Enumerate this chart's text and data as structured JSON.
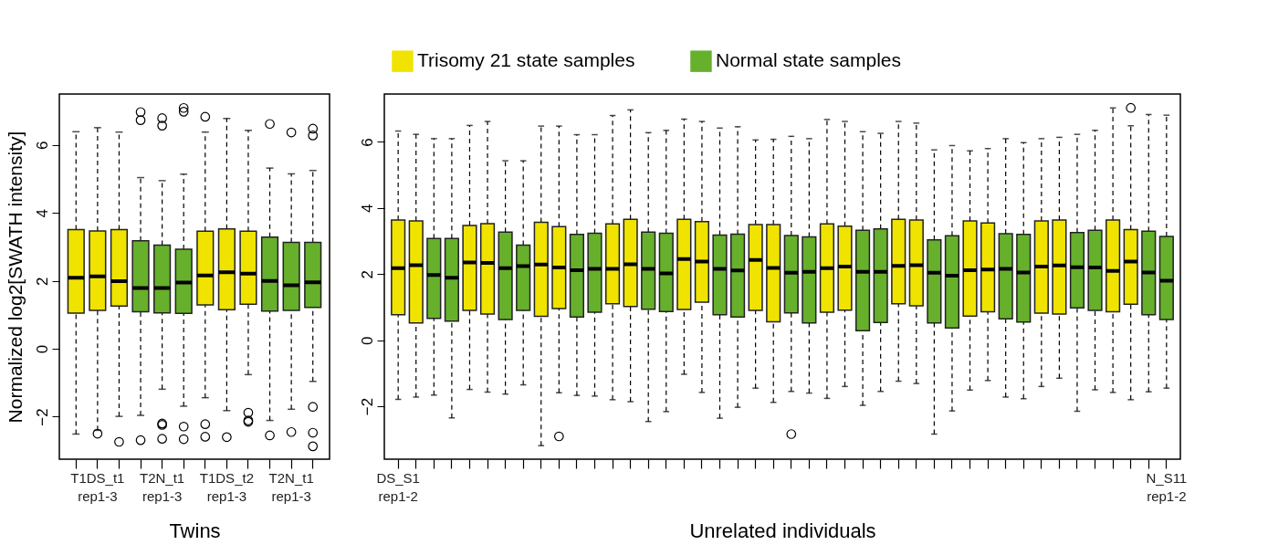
{
  "chart_data": [
    {
      "type": "box",
      "xlabel": "Twins",
      "ylabel": "Normalized log2[SWATH intensity]",
      "legend": "top",
      "categories": [
        null,
        "T1DS_t1\nrep1-3",
        null,
        null,
        "T2N_t1\nrep1-3",
        null,
        null,
        "T1DS_t2\nrep1-3",
        null,
        null,
        "T2N_t1\nrep1-3",
        null
      ],
      "ylim": [
        -3.25,
        7.5
      ],
      "yticks": [
        -2,
        0,
        2,
        4,
        6
      ],
      "series": [
        {
          "name": "Trisomy 21 state samples",
          "color": "#f0e300",
          "boxes": [
            {
              "low": -2.51,
              "q1": 1.05,
              "median": 2.09,
              "q3": 3.51,
              "high": 6.39
            },
            {
              "low": -2.4,
              "q1": 1.13,
              "median": 2.13,
              "q3": 3.47,
              "high": 6.51,
              "outliers": [
                -2.5
              ]
            },
            {
              "low": -1.99,
              "q1": 1.26,
              "median": 1.99,
              "q3": 3.51,
              "high": 6.38,
              "outliers": [
                -2.74
              ]
            },
            null,
            null,
            null,
            {
              "low": -1.44,
              "q1": 1.29,
              "median": 2.16,
              "q3": 3.46,
              "high": 6.38,
              "outliers": [
                6.83,
                -2.22,
                -2.59
              ]
            },
            {
              "low": -1.82,
              "q1": 1.15,
              "median": 2.25,
              "q3": 3.53,
              "high": 6.78,
              "outliers": [
                -2.6
              ]
            },
            {
              "low": -0.76,
              "q1": 1.31,
              "median": 2.21,
              "q3": 3.46,
              "high": 6.43,
              "outliers": [
                -1.88,
                -2.11,
                -2.15
              ]
            },
            null,
            null,
            null
          ]
        },
        {
          "name": "Normal state samples",
          "color": "#66b02c",
          "boxes": [
            null,
            null,
            null,
            {
              "low": -1.96,
              "q1": 1.09,
              "median": 1.79,
              "q3": 3.18,
              "high": 5.04,
              "outliers": [
                6.97,
                6.73,
                -2.69
              ]
            },
            {
              "low": -1.19,
              "q1": 1.06,
              "median": 1.79,
              "q3": 3.05,
              "high": 4.95,
              "outliers": [
                6.79,
                6.57,
                -2.2,
                -2.24,
                -2.65
              ]
            },
            {
              "low": -1.69,
              "q1": 1.04,
              "median": 1.95,
              "q3": 2.93,
              "high": 5.14,
              "outliers": [
                7.09,
                6.98,
                -2.29,
                -2.66
              ]
            },
            null,
            null,
            null,
            {
              "low": -2.11,
              "q1": 1.11,
              "median": 2.0,
              "q3": 3.29,
              "high": 5.32,
              "outliers": [
                6.62,
                -2.55
              ]
            },
            {
              "low": -1.78,
              "q1": 1.13,
              "median": 1.87,
              "q3": 3.13,
              "high": 5.15,
              "outliers": [
                6.37,
                -2.45
              ]
            },
            {
              "low": -0.96,
              "q1": 1.22,
              "median": 1.96,
              "q3": 3.13,
              "high": 5.25,
              "outliers": [
                6.48,
                6.28,
                -1.71,
                -2.47,
                -2.87
              ]
            }
          ]
        }
      ]
    },
    {
      "type": "box",
      "xlabel": "Unrelated individuals",
      "legend": "top",
      "categories": [
        "DS_S1\nrep1-2",
        null,
        null,
        null,
        null,
        null,
        null,
        null,
        null,
        null,
        null,
        null,
        null,
        null,
        null,
        null,
        null,
        null,
        null,
        null,
        null,
        null,
        null,
        null,
        null,
        null,
        null,
        null,
        null,
        null,
        null,
        null,
        null,
        null,
        null,
        null,
        null,
        null,
        null,
        null,
        null,
        null,
        null,
        "N_S11\nrep1-2"
      ],
      "ylim": [
        -3.6,
        7.45
      ],
      "yticks": [
        -2,
        0,
        2,
        4,
        6
      ],
      "series": [
        {
          "name": "Trisomy 21 state samples",
          "color": "#f0e300",
          "boxes": [
            {
              "low": -1.79,
              "q1": 0.77,
              "median": 2.18,
              "q3": 3.64,
              "high": 6.33
            },
            {
              "low": -1.72,
              "q1": 0.52,
              "median": 2.27,
              "q3": 3.61,
              "high": 6.23
            },
            null,
            null,
            {
              "low": -1.49,
              "q1": 0.9,
              "median": 2.35,
              "q3": 3.47,
              "high": 6.5
            },
            {
              "low": -1.57,
              "q1": 0.79,
              "median": 2.34,
              "q3": 3.53,
              "high": 6.62
            },
            null,
            null,
            {
              "low": -3.19,
              "q1": 0.72,
              "median": 2.29,
              "q3": 3.57,
              "high": 6.48
            },
            {
              "low": -1.59,
              "q1": 0.96,
              "median": 2.2,
              "q3": 3.44,
              "high": 6.48,
              "outliers": [
                -2.91
              ]
            },
            null,
            null,
            {
              "low": -1.8,
              "q1": 1.1,
              "median": 2.16,
              "q3": 3.52,
              "high": 6.8
            },
            {
              "low": -1.86,
              "q1": 1.02,
              "median": 2.3,
              "q3": 3.66,
              "high": 6.97
            },
            null,
            null,
            {
              "low": -1.03,
              "q1": 0.93,
              "median": 2.46,
              "q3": 3.66,
              "high": 6.69
            },
            {
              "low": -1.58,
              "q1": 1.15,
              "median": 2.38,
              "q3": 3.59,
              "high": 6.62
            },
            null,
            null,
            {
              "low": -1.45,
              "q1": 0.9,
              "median": 2.43,
              "q3": 3.5,
              "high": 6.06
            },
            {
              "low": -1.88,
              "q1": 0.56,
              "median": 2.19,
              "q3": 3.5,
              "high": 6.08
            },
            null,
            null,
            {
              "low": -1.76,
              "q1": 0.85,
              "median": 2.18,
              "q3": 3.52,
              "high": 6.68
            },
            {
              "low": -1.4,
              "q1": 0.91,
              "median": 2.23,
              "q3": 3.45,
              "high": 6.62
            },
            null,
            null,
            {
              "low": -1.24,
              "q1": 1.1,
              "median": 2.25,
              "q3": 3.66,
              "high": 6.62
            },
            {
              "low": -1.31,
              "q1": 1.04,
              "median": 2.27,
              "q3": 3.64,
              "high": 6.57
            },
            null,
            null,
            {
              "low": -1.51,
              "q1": 0.73,
              "median": 2.12,
              "q3": 3.61,
              "high": 5.73
            },
            {
              "low": -1.22,
              "q1": 0.86,
              "median": 2.14,
              "q3": 3.55,
              "high": 5.8
            },
            null,
            null,
            {
              "low": -1.4,
              "q1": 0.82,
              "median": 2.23,
              "q3": 3.61,
              "high": 6.1
            },
            {
              "low": -1.15,
              "q1": 0.79,
              "median": 2.26,
              "q3": 3.64,
              "high": 6.14
            },
            null,
            null,
            {
              "low": -1.58,
              "q1": 0.86,
              "median": 2.1,
              "q3": 3.64,
              "high": 7.03
            },
            {
              "low": -1.8,
              "q1": 1.09,
              "median": 2.38,
              "q3": 3.35,
              "high": 6.49,
              "outliers": [
                7.03
              ]
            },
            null,
            null
          ]
        },
        {
          "name": "Normal state samples",
          "color": "#66b02c",
          "boxes": [
            null,
            null,
            {
              "low": -1.66,
              "q1": 0.66,
              "median": 1.97,
              "q3": 3.08,
              "high": 6.1
            },
            {
              "low": -2.35,
              "q1": 0.58,
              "median": 1.89,
              "q3": 3.08,
              "high": 6.1
            },
            null,
            null,
            {
              "low": -1.63,
              "q1": 0.63,
              "median": 2.18,
              "q3": 3.27,
              "high": 5.43
            },
            {
              "low": -1.35,
              "q1": 0.9,
              "median": 2.24,
              "q3": 2.88,
              "high": 5.43
            },
            null,
            null,
            {
              "low": -1.67,
              "q1": 0.7,
              "median": 2.12,
              "q3": 3.2,
              "high": 6.22
            },
            {
              "low": -1.69,
              "q1": 0.85,
              "median": 2.16,
              "q3": 3.24,
              "high": 6.22
            },
            null,
            null,
            {
              "low": -2.46,
              "q1": 0.94,
              "median": 2.16,
              "q3": 3.27,
              "high": 6.28
            },
            {
              "low": -2.16,
              "q1": 0.87,
              "median": 2.02,
              "q3": 3.24,
              "high": 6.35
            },
            null,
            null,
            {
              "low": -2.36,
              "q1": 0.77,
              "median": 2.16,
              "q3": 3.18,
              "high": 6.42
            },
            {
              "low": -2.03,
              "q1": 0.7,
              "median": 2.11,
              "q3": 3.21,
              "high": 6.46
            },
            null,
            null,
            {
              "low": -1.55,
              "q1": 0.83,
              "median": 2.04,
              "q3": 3.17,
              "high": 6.17,
              "outliers": [
                -2.84
              ]
            },
            {
              "low": -1.6,
              "q1": 0.52,
              "median": 2.07,
              "q3": 3.13,
              "high": 6.1
            },
            null,
            null,
            {
              "low": -1.97,
              "q1": 0.29,
              "median": 2.07,
              "q3": 3.33,
              "high": 6.31
            },
            {
              "low": -1.55,
              "q1": 0.54,
              "median": 2.07,
              "q3": 3.37,
              "high": 6.26
            },
            null,
            null,
            {
              "low": -2.84,
              "q1": 0.52,
              "median": 2.04,
              "q3": 3.04,
              "high": 5.76
            },
            {
              "low": -2.14,
              "q1": 0.37,
              "median": 1.95,
              "q3": 3.16,
              "high": 5.89
            },
            null,
            null,
            {
              "low": -1.72,
              "q1": 0.65,
              "median": 2.16,
              "q3": 3.22,
              "high": 6.1
            },
            {
              "low": -1.77,
              "q1": 0.55,
              "median": 2.05,
              "q3": 3.2,
              "high": 5.98
            },
            null,
            null,
            {
              "low": -2.15,
              "q1": 0.98,
              "median": 2.21,
              "q3": 3.26,
              "high": 6.23
            },
            {
              "low": -1.5,
              "q1": 0.9,
              "median": 2.2,
              "q3": 3.33,
              "high": 6.35
            },
            null,
            null,
            {
              "low": -1.56,
              "q1": 0.77,
              "median": 2.05,
              "q3": 3.3,
              "high": 6.83
            },
            {
              "low": -1.45,
              "q1": 0.63,
              "median": 1.8,
              "q3": 3.14,
              "high": 6.81
            }
          ]
        }
      ]
    }
  ]
}
